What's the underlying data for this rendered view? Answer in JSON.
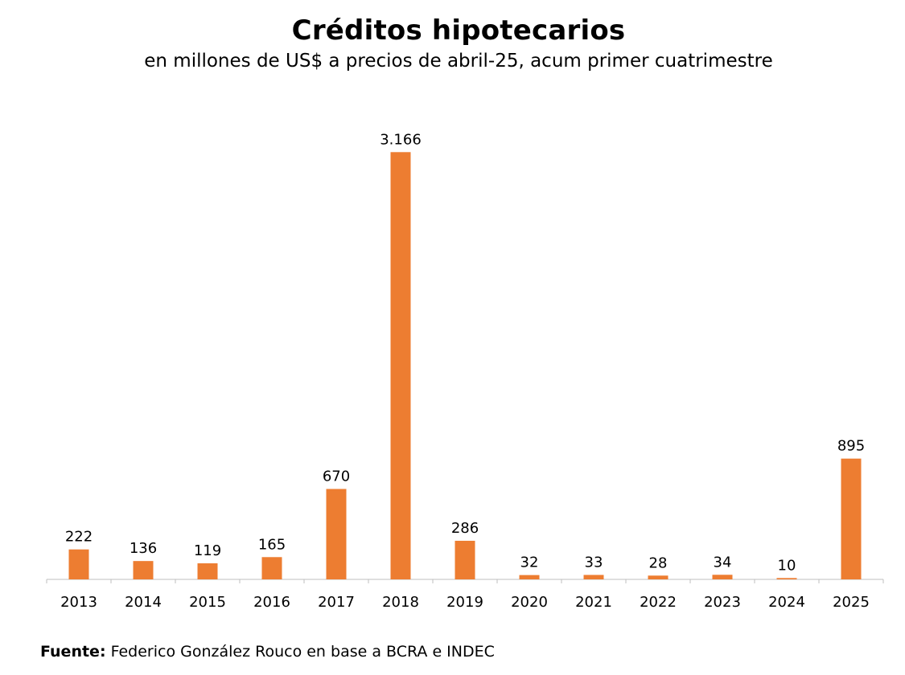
{
  "chart_data": {
    "type": "bar",
    "title": "Créditos hipotecarios",
    "subtitle": "en millones de US$ a precios de abril-25, acum primer cuatrimestre",
    "categories": [
      "2013",
      "2014",
      "2015",
      "2016",
      "2017",
      "2018",
      "2019",
      "2020",
      "2021",
      "2022",
      "2023",
      "2024",
      "2025"
    ],
    "values": [
      222,
      136,
      119,
      165,
      670,
      3166,
      286,
      32,
      33,
      28,
      34,
      10,
      895
    ],
    "data_labels": [
      "222",
      "136",
      "119",
      "165",
      "670",
      "3.166",
      "286",
      "32",
      "33",
      "28",
      "34",
      "10",
      "895"
    ],
    "xlabel": "",
    "ylabel": "",
    "ylim": [
      0,
      3400
    ],
    "grid": false,
    "bar_color": "#ED7D31"
  },
  "source": {
    "label": "Fuente:",
    "text": "Federico González Rouco en base a BCRA e INDEC"
  }
}
